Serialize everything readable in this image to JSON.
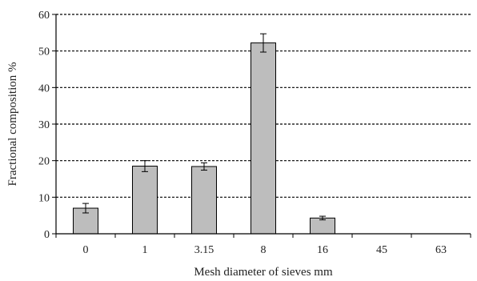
{
  "chart_data": {
    "type": "bar",
    "categories": [
      "0",
      "1",
      "3.15",
      "8",
      "16",
      "45",
      "63"
    ],
    "values": [
      7.0,
      18.5,
      18.4,
      52.2,
      4.3,
      0,
      0
    ],
    "errors": [
      1.3,
      1.5,
      1.0,
      2.5,
      0.5,
      0,
      0
    ],
    "title": "",
    "xlabel": "Mesh diameter of sieves mm",
    "ylabel": "Fractional composition %",
    "ylim": [
      0,
      60
    ],
    "yticks": [
      0,
      10,
      20,
      30,
      40,
      50,
      60
    ],
    "grid": true,
    "legend": "none",
    "colors": {
      "bar_fill": "#bdbdbd",
      "bar_stroke": "#000000",
      "grid": "#000000",
      "axis": "#000000"
    }
  }
}
